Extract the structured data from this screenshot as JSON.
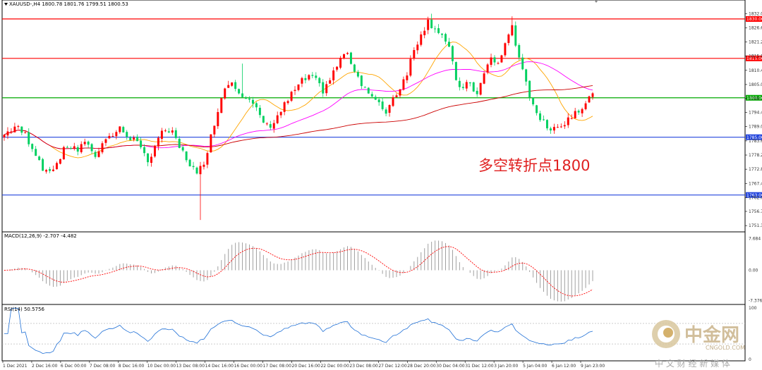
{
  "chart_data": {
    "type": "candlestick",
    "symbol_header": "XAUUSD-,H4  1800.78 1801.76 1799.51 1800.53",
    "annotation": "多空转折点1800",
    "y_ticks": [
      "1832.05",
      "1826.65",
      "1821.25",
      "1815.85",
      "1810.45",
      "1805.05",
      "1799.70",
      "1794.40",
      "1789.05",
      "1783.60",
      "1778.20",
      "1772.80",
      "1767.40",
      "1762.00",
      "1756.75",
      "1751.35"
    ],
    "x_ticks": [
      "1 Dec 2021",
      "2 Dec 16:00",
      "6 Dec 00:00",
      "7 Dec 08:00",
      "8 Dec 16:00",
      "10 Dec 00:00",
      "13 Dec 08:00",
      "14 Dec 16:00",
      "16 Dec 00:00",
      "17 Dec 08:00",
      "20 Dec 16:00",
      "22 Dec 00:00",
      "23 Dec 08:00",
      "27 Dec 12:00",
      "28 Dec 20:00",
      "30 Dec 04:00",
      "31 Dec 12:00",
      "3 Jan 20:00",
      "5 Jan 04:00",
      "6 Jan 12:00",
      "9 Jan 23:00"
    ],
    "ylim": [
      1749.5,
      1834.0
    ],
    "levels": [
      {
        "label": "1830.00",
        "value": 1830.0,
        "color": "#ff0000"
      },
      {
        "label": "1815.00",
        "value": 1815.0,
        "color": "#ff0000"
      },
      {
        "label": "1800.00",
        "value": 1800.0,
        "color": "#00aa00"
      },
      {
        "label": "1785.00",
        "value": 1785.0,
        "color": "#2244dd"
      },
      {
        "label": "1763.00",
        "value": 1763.0,
        "color": "#2244dd"
      }
    ],
    "price_path": [
      [
        0,
        1786
      ],
      [
        3,
        1789
      ],
      [
        6,
        1786
      ],
      [
        9,
        1779
      ],
      [
        12,
        1771
      ],
      [
        15,
        1775
      ],
      [
        18,
        1782
      ],
      [
        21,
        1780
      ],
      [
        24,
        1783
      ],
      [
        26,
        1777
      ],
      [
        28,
        1784
      ],
      [
        30,
        1785
      ],
      [
        33,
        1788
      ],
      [
        35,
        1786
      ],
      [
        37,
        1784
      ],
      [
        39,
        1780
      ],
      [
        41,
        1777
      ],
      [
        42,
        1778
      ],
      [
        43,
        1782
      ],
      [
        44,
        1784
      ],
      [
        46,
        1788
      ],
      [
        48,
        1786
      ],
      [
        50,
        1781
      ],
      [
        52,
        1777
      ],
      [
        54,
        1773
      ],
      [
        55,
        1770
      ],
      [
        57,
        1776
      ],
      [
        59,
        1785
      ],
      [
        61,
        1796
      ],
      [
        63,
        1804
      ],
      [
        65,
        1807
      ],
      [
        67,
        1803
      ],
      [
        69,
        1800
      ],
      [
        71,
        1797
      ],
      [
        73,
        1793
      ],
      [
        75,
        1789
      ],
      [
        77,
        1791
      ],
      [
        79,
        1795
      ],
      [
        81,
        1799
      ],
      [
        83,
        1803
      ],
      [
        85,
        1806
      ],
      [
        87,
        1808
      ],
      [
        89,
        1806
      ],
      [
        91,
        1803
      ],
      [
        93,
        1807
      ],
      [
        95,
        1812
      ],
      [
        97,
        1817
      ],
      [
        99,
        1814
      ],
      [
        101,
        1808
      ],
      [
        103,
        1804
      ],
      [
        105,
        1800
      ],
      [
        107,
        1797
      ],
      [
        109,
        1795
      ],
      [
        111,
        1800
      ],
      [
        113,
        1804
      ],
      [
        115,
        1810
      ],
      [
        117,
        1818
      ],
      [
        119,
        1825
      ],
      [
        121,
        1829
      ],
      [
        123,
        1827
      ],
      [
        125,
        1824
      ],
      [
        127,
        1818
      ],
      [
        129,
        1807
      ],
      [
        131,
        1803
      ],
      [
        133,
        1806
      ],
      [
        135,
        1801
      ],
      [
        137,
        1809
      ],
      [
        139,
        1815
      ],
      [
        141,
        1813
      ],
      [
        143,
        1820
      ],
      [
        145,
        1828
      ],
      [
        147,
        1814
      ],
      [
        149,
        1805
      ],
      [
        151,
        1798
      ],
      [
        153,
        1792
      ],
      [
        155,
        1788
      ],
      [
        157,
        1790
      ],
      [
        159,
        1789
      ],
      [
        161,
        1792
      ],
      [
        163,
        1795
      ],
      [
        165,
        1797
      ],
      [
        167,
        1800
      ],
      [
        168,
        1800.5
      ]
    ],
    "candle_count": 169,
    "big_wicks": [
      {
        "i": 56,
        "low": 1753.5
      },
      {
        "i": 68,
        "high": 1813
      },
      {
        "i": 122,
        "high": 1832
      },
      {
        "i": 145,
        "high": 1831
      }
    ],
    "macd": {
      "label": "MACD(12,26,9) -2.707 -4.482",
      "y_ticks": [
        "7.684",
        "0.00",
        "-7.376"
      ],
      "ylim": [
        -8.0,
        8.5
      ]
    },
    "rsi": {
      "label": "RSI(14) 50.5756",
      "ylim": [
        0,
        100
      ],
      "guides": [
        70,
        30
      ],
      "y_ticks": [
        "100",
        "0"
      ]
    }
  },
  "watermark": {
    "brand_cn": "中金网",
    "brand_en": "CNGOLD.COM",
    "subtitle": "中 文 财 经 新 媒 体"
  },
  "colors": {
    "bull": "#ff0000",
    "bear": "#00d060",
    "ma_fast": "#ffa500",
    "ma_mid": "#ff00ff",
    "ma_slow": "#cc0000",
    "macd_signal": "#ff0000",
    "rsi": "#1e6fd6"
  }
}
